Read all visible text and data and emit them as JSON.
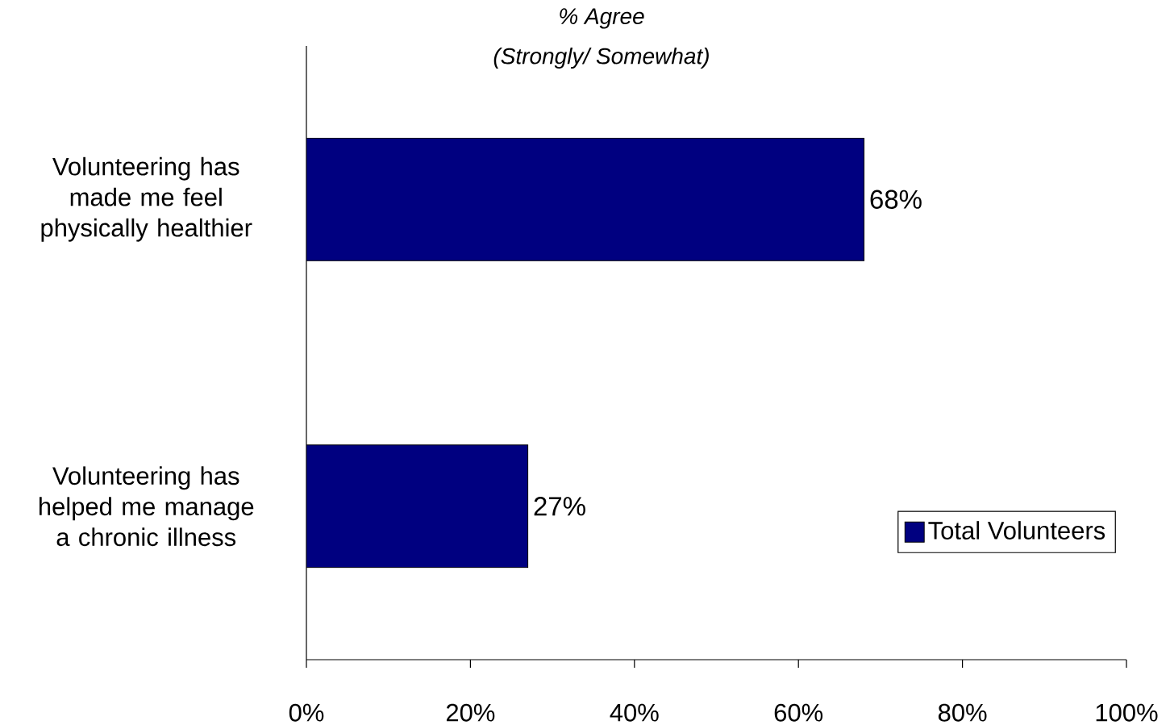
{
  "chart_data": {
    "type": "bar",
    "orientation": "horizontal",
    "title": "% Agree",
    "subtitle": "(Strongly/ Somewhat)",
    "categories": [
      "Volunteering has made me feel physically healthier",
      "Volunteering has helped me manage a chronic illness"
    ],
    "series": [
      {
        "name": "Total Volunteers",
        "color": "#000080",
        "values": [
          68,
          27
        ],
        "value_labels": [
          "68%",
          "27%"
        ]
      }
    ],
    "xlim": [
      0,
      100
    ],
    "xticks": [
      {
        "value": 0,
        "label": "0%"
      },
      {
        "value": 20,
        "label": "20%"
      },
      {
        "value": 40,
        "label": "40%"
      },
      {
        "value": 60,
        "label": "60%"
      },
      {
        "value": 80,
        "label": "80%"
      },
      {
        "value": 100,
        "label": "100%"
      }
    ],
    "grid": false,
    "legend": "bottom right"
  }
}
